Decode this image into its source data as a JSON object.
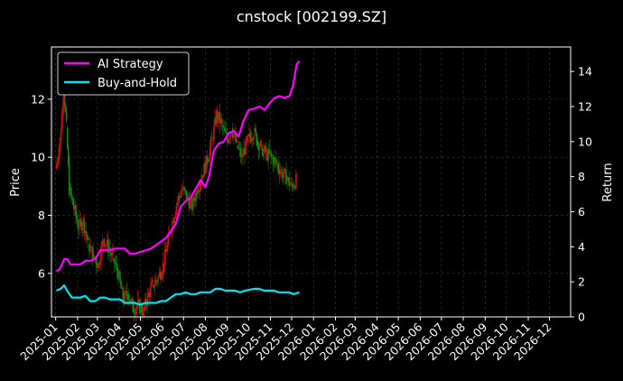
{
  "chart_data": {
    "type": "line",
    "title": "cnstock [002199.SZ]",
    "y_left_label": "Price",
    "y_right_label": "Return",
    "x_ticks": [
      "2025-01",
      "2025-02",
      "2025-03",
      "2025-04",
      "2025-05",
      "2025-06",
      "2025-07",
      "2025-08",
      "2025-09",
      "2025-10",
      "2025-11",
      "2025-12",
      "2026-01",
      "2026-02",
      "2026-03",
      "2026-04",
      "2026-05",
      "2026-06",
      "2026-07",
      "2026-08",
      "2026-09",
      "2026-10",
      "2026-11",
      "2026-12"
    ],
    "x_range": [
      "2024-12-26",
      "2026-12-31"
    ],
    "y_left_range": [
      4.5,
      13.8
    ],
    "y_left_ticks": [
      6,
      8,
      10,
      12
    ],
    "y_right_range": [
      0,
      15.4
    ],
    "y_right_ticks": [
      0,
      2,
      4,
      6,
      8,
      10,
      12,
      14
    ],
    "grid": true,
    "legend_position": "top-left",
    "colors": {
      "background": "#000000",
      "frame": "#ffffff",
      "grid": "#3a3a3a",
      "ai": "#ff00ff",
      "bh": "#00e5ee",
      "candle_up": "#cc1111",
      "candle_down": "#118811"
    },
    "candles_price": [
      [
        "2025-01-02",
        9.6
      ],
      [
        "2025-01-08",
        10.6
      ],
      [
        "2025-01-13",
        12.4
      ],
      [
        "2025-01-17",
        11.0
      ],
      [
        "2025-01-21",
        8.9
      ],
      [
        "2025-02-03",
        7.6
      ],
      [
        "2025-02-10",
        7.8
      ],
      [
        "2025-02-17",
        7.0
      ],
      [
        "2025-02-24",
        6.6
      ],
      [
        "2025-03-03",
        6.3
      ],
      [
        "2025-03-10",
        7.2
      ],
      [
        "2025-03-17",
        6.9
      ],
      [
        "2025-03-24",
        6.5
      ],
      [
        "2025-03-31",
        6.0
      ],
      [
        "2025-04-07",
        5.1
      ],
      [
        "2025-04-14",
        5.3
      ],
      [
        "2025-04-21",
        4.8
      ],
      [
        "2025-04-28",
        4.9
      ],
      [
        "2025-05-06",
        4.7
      ],
      [
        "2025-05-12",
        5.2
      ],
      [
        "2025-05-19",
        5.6
      ],
      [
        "2025-05-26",
        5.8
      ],
      [
        "2025-06-03",
        6.3
      ],
      [
        "2025-06-09",
        7.0
      ],
      [
        "2025-06-16",
        7.8
      ],
      [
        "2025-06-23",
        8.5
      ],
      [
        "2025-06-30",
        8.9
      ],
      [
        "2025-07-07",
        8.6
      ],
      [
        "2025-07-14",
        8.3
      ],
      [
        "2025-07-21",
        8.9
      ],
      [
        "2025-07-28",
        9.4
      ],
      [
        "2025-08-04",
        9.9
      ],
      [
        "2025-08-11",
        10.6
      ],
      [
        "2025-08-18",
        11.5
      ],
      [
        "2025-08-25",
        11.1
      ],
      [
        "2025-09-01",
        10.6
      ],
      [
        "2025-09-08",
        11.0
      ],
      [
        "2025-09-15",
        10.4
      ],
      [
        "2025-09-22",
        10.0
      ],
      [
        "2025-09-29",
        10.5
      ],
      [
        "2025-10-09",
        10.9
      ],
      [
        "2025-10-13",
        10.6
      ],
      [
        "2025-10-20",
        10.3
      ],
      [
        "2025-10-27",
        10.1
      ],
      [
        "2025-11-03",
        10.0
      ],
      [
        "2025-11-10",
        9.8
      ],
      [
        "2025-11-17",
        9.5
      ],
      [
        "2025-11-24",
        9.3
      ],
      [
        "2025-12-01",
        9.0
      ],
      [
        "2025-12-08",
        9.2
      ]
    ],
    "series": [
      {
        "name": "AI Strategy",
        "color": "#ff00ff",
        "points": [
          [
            "2025-01-02",
            2.6
          ],
          [
            "2025-01-06",
            2.7
          ],
          [
            "2025-01-10",
            3.0
          ],
          [
            "2025-01-13",
            3.3
          ],
          [
            "2025-01-17",
            3.3
          ],
          [
            "2025-01-22",
            3.0
          ],
          [
            "2025-02-05",
            3.0
          ],
          [
            "2025-02-12",
            3.2
          ],
          [
            "2025-02-19",
            3.2
          ],
          [
            "2025-02-26",
            3.3
          ],
          [
            "2025-03-05",
            3.8
          ],
          [
            "2025-03-12",
            3.8
          ],
          [
            "2025-03-19",
            3.8
          ],
          [
            "2025-03-26",
            3.9
          ],
          [
            "2025-04-02",
            3.9
          ],
          [
            "2025-04-09",
            3.9
          ],
          [
            "2025-04-16",
            3.6
          ],
          [
            "2025-04-23",
            3.6
          ],
          [
            "2025-04-30",
            3.7
          ],
          [
            "2025-05-09",
            3.8
          ],
          [
            "2025-05-16",
            3.9
          ],
          [
            "2025-05-23",
            4.1
          ],
          [
            "2025-05-30",
            4.3
          ],
          [
            "2025-06-06",
            4.5
          ],
          [
            "2025-06-13",
            4.9
          ],
          [
            "2025-06-20",
            5.3
          ],
          [
            "2025-06-27",
            6.3
          ],
          [
            "2025-07-04",
            6.6
          ],
          [
            "2025-07-11",
            6.8
          ],
          [
            "2025-07-18",
            7.3
          ],
          [
            "2025-07-25",
            7.8
          ],
          [
            "2025-08-01",
            7.4
          ],
          [
            "2025-08-06",
            8.0
          ],
          [
            "2025-08-13",
            9.5
          ],
          [
            "2025-08-20",
            9.9
          ],
          [
            "2025-08-27",
            10.0
          ],
          [
            "2025-09-03",
            10.5
          ],
          [
            "2025-09-10",
            10.6
          ],
          [
            "2025-09-17",
            10.3
          ],
          [
            "2025-09-24",
            11.2
          ],
          [
            "2025-10-01",
            11.8
          ],
          [
            "2025-10-10",
            11.9
          ],
          [
            "2025-10-17",
            12.0
          ],
          [
            "2025-10-24",
            11.8
          ],
          [
            "2025-10-31",
            12.2
          ],
          [
            "2025-11-07",
            12.5
          ],
          [
            "2025-11-14",
            12.6
          ],
          [
            "2025-11-21",
            12.5
          ],
          [
            "2025-11-28",
            12.6
          ],
          [
            "2025-12-03",
            13.2
          ],
          [
            "2025-12-08",
            14.4
          ],
          [
            "2025-12-12",
            14.6
          ]
        ]
      },
      {
        "name": "Buy-and-Hold",
        "color": "#00e5ee",
        "points": [
          [
            "2025-01-02",
            1.5
          ],
          [
            "2025-01-08",
            1.6
          ],
          [
            "2025-01-13",
            1.8
          ],
          [
            "2025-01-17",
            1.5
          ],
          [
            "2025-01-24",
            1.1
          ],
          [
            "2025-02-05",
            1.1
          ],
          [
            "2025-02-12",
            1.2
          ],
          [
            "2025-02-19",
            0.9
          ],
          [
            "2025-02-26",
            0.9
          ],
          [
            "2025-03-05",
            1.1
          ],
          [
            "2025-03-12",
            1.1
          ],
          [
            "2025-03-19",
            1.0
          ],
          [
            "2025-03-26",
            1.0
          ],
          [
            "2025-04-02",
            1.0
          ],
          [
            "2025-04-09",
            0.8
          ],
          [
            "2025-04-16",
            0.8
          ],
          [
            "2025-04-23",
            0.8
          ],
          [
            "2025-04-30",
            0.7
          ],
          [
            "2025-05-09",
            0.8
          ],
          [
            "2025-05-16",
            0.8
          ],
          [
            "2025-05-23",
            0.8
          ],
          [
            "2025-05-30",
            0.9
          ],
          [
            "2025-06-06",
            0.9
          ],
          [
            "2025-06-13",
            1.1
          ],
          [
            "2025-06-20",
            1.3
          ],
          [
            "2025-06-27",
            1.3
          ],
          [
            "2025-07-04",
            1.4
          ],
          [
            "2025-07-11",
            1.3
          ],
          [
            "2025-07-18",
            1.3
          ],
          [
            "2025-07-25",
            1.4
          ],
          [
            "2025-08-01",
            1.4
          ],
          [
            "2025-08-08",
            1.4
          ],
          [
            "2025-08-15",
            1.6
          ],
          [
            "2025-08-22",
            1.6
          ],
          [
            "2025-08-29",
            1.5
          ],
          [
            "2025-09-05",
            1.5
          ],
          [
            "2025-09-12",
            1.5
          ],
          [
            "2025-09-19",
            1.4
          ],
          [
            "2025-09-26",
            1.5
          ],
          [
            "2025-10-09",
            1.6
          ],
          [
            "2025-10-16",
            1.6
          ],
          [
            "2025-10-23",
            1.5
          ],
          [
            "2025-10-30",
            1.5
          ],
          [
            "2025-11-06",
            1.5
          ],
          [
            "2025-11-13",
            1.4
          ],
          [
            "2025-11-20",
            1.4
          ],
          [
            "2025-11-27",
            1.4
          ],
          [
            "2025-12-04",
            1.3
          ],
          [
            "2025-12-12",
            1.4
          ]
        ]
      }
    ]
  }
}
